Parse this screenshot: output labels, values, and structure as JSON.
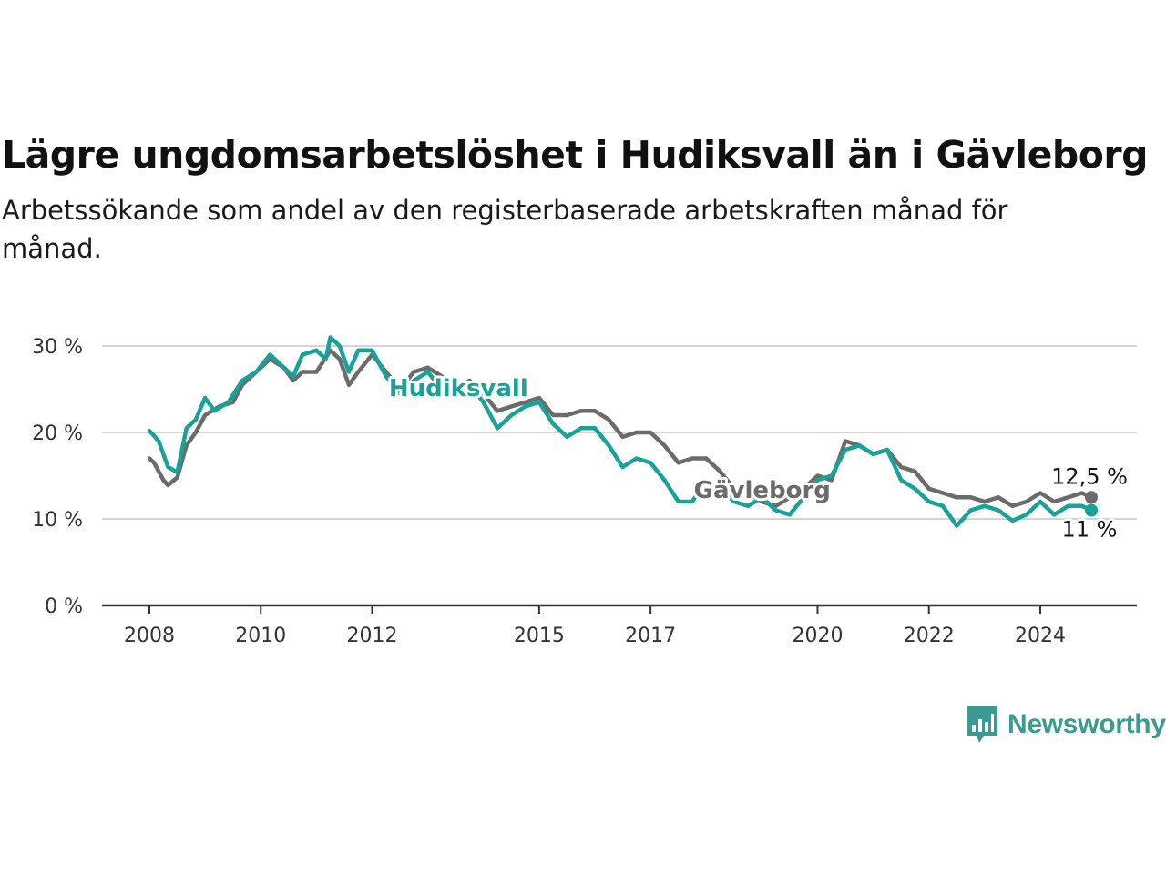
{
  "header": {
    "title": "Lägre ungdomsarbetslöshet i Hudiksvall än i Gävleborg",
    "subtitle": "Arbetssökande som andel av den registerbaserade arbetskraften månad för månad."
  },
  "branding": {
    "logo_text": "Newsworthy",
    "logo_icon": "bar-chart-speech-bubble-icon",
    "logo_color": "#3a9b92"
  },
  "chart_data": {
    "type": "line",
    "title": "Lägre ungdomsarbetslöshet i Hudiksvall än i Gävleborg",
    "xlabel": "",
    "ylabel": "",
    "xlim": [
      "2008-01",
      "2024-12"
    ],
    "ylim": [
      0,
      30
    ],
    "yticks": [
      0,
      10,
      20,
      30
    ],
    "ytick_labels": [
      "0 %",
      "10 %",
      "20 %",
      "30 %"
    ],
    "xticks": [
      "2008-01",
      "2010-01",
      "2012-01",
      "2015-01",
      "2017-01",
      "2020-01",
      "2022-01",
      "2024-01"
    ],
    "xtick_labels": [
      "2008",
      "2010",
      "2012",
      "2015",
      "2017",
      "2020",
      "2022",
      "2024"
    ],
    "grid": "horizontal",
    "series": [
      {
        "name": "Gävleborg",
        "color": "#6b6b6b",
        "end_label": "12,5 %",
        "points": [
          [
            "2008-01",
            17.0
          ],
          [
            "2008-02",
            16.5
          ],
          [
            "2008-04",
            14.5
          ],
          [
            "2008-05",
            13.9
          ],
          [
            "2008-07",
            14.8
          ],
          [
            "2008-09",
            18.5
          ],
          [
            "2008-11",
            20.0
          ],
          [
            "2009-01",
            22.0
          ],
          [
            "2009-04",
            23.0
          ],
          [
            "2009-07",
            23.5
          ],
          [
            "2009-09",
            25.5
          ],
          [
            "2009-12",
            27.0
          ],
          [
            "2010-03",
            28.5
          ],
          [
            "2010-06",
            27.5
          ],
          [
            "2010-08",
            26.0
          ],
          [
            "2010-10",
            27.0
          ],
          [
            "2011-01",
            27.0
          ],
          [
            "2011-04",
            29.5
          ],
          [
            "2011-06",
            28.5
          ],
          [
            "2011-08",
            25.5
          ],
          [
            "2011-10",
            27.0
          ],
          [
            "2012-01",
            29.0
          ],
          [
            "2012-04",
            27.0
          ],
          [
            "2012-07",
            25.0
          ],
          [
            "2012-10",
            27.0
          ],
          [
            "2013-01",
            27.5
          ],
          [
            "2013-04",
            26.5
          ],
          [
            "2013-07",
            25.0
          ],
          [
            "2013-10",
            26.0
          ],
          [
            "2014-01",
            24.5
          ],
          [
            "2014-04",
            22.5
          ],
          [
            "2014-07",
            23.0
          ],
          [
            "2014-10",
            23.5
          ],
          [
            "2015-01",
            24.0
          ],
          [
            "2015-04",
            22.0
          ],
          [
            "2015-07",
            22.0
          ],
          [
            "2015-10",
            22.5
          ],
          [
            "2016-01",
            22.5
          ],
          [
            "2016-04",
            21.5
          ],
          [
            "2016-07",
            19.5
          ],
          [
            "2016-10",
            20.0
          ],
          [
            "2017-01",
            20.0
          ],
          [
            "2017-04",
            18.5
          ],
          [
            "2017-07",
            16.5
          ],
          [
            "2017-10",
            17.0
          ],
          [
            "2018-01",
            17.0
          ],
          [
            "2018-04",
            15.5
          ],
          [
            "2018-07",
            13.5
          ],
          [
            "2018-10",
            13.0
          ],
          [
            "2019-01",
            12.0
          ],
          [
            "2019-04",
            11.5
          ],
          [
            "2019-07",
            12.5
          ],
          [
            "2019-10",
            13.5
          ],
          [
            "2020-01",
            15.0
          ],
          [
            "2020-04",
            14.5
          ],
          [
            "2020-07",
            19.0
          ],
          [
            "2020-10",
            18.5
          ],
          [
            "2021-01",
            17.5
          ],
          [
            "2021-04",
            18.0
          ],
          [
            "2021-07",
            16.0
          ],
          [
            "2021-10",
            15.5
          ],
          [
            "2022-01",
            13.5
          ],
          [
            "2022-04",
            13.0
          ],
          [
            "2022-07",
            12.5
          ],
          [
            "2022-10",
            12.5
          ],
          [
            "2023-01",
            12.0
          ],
          [
            "2023-04",
            12.5
          ],
          [
            "2023-07",
            11.5
          ],
          [
            "2023-10",
            12.0
          ],
          [
            "2024-01",
            13.0
          ],
          [
            "2024-04",
            12.0
          ],
          [
            "2024-07",
            12.5
          ],
          [
            "2024-10",
            13.0
          ],
          [
            "2024-12",
            12.5
          ]
        ]
      },
      {
        "name": "Hudiksvall",
        "color": "#17a398",
        "end_label": "11 %",
        "points": [
          [
            "2008-01",
            20.2
          ],
          [
            "2008-03",
            19.0
          ],
          [
            "2008-05",
            16.0
          ],
          [
            "2008-07",
            15.4
          ],
          [
            "2008-09",
            20.5
          ],
          [
            "2008-11",
            21.5
          ],
          [
            "2009-01",
            24.0
          ],
          [
            "2009-03",
            22.5
          ],
          [
            "2009-06",
            23.5
          ],
          [
            "2009-09",
            26.0
          ],
          [
            "2009-12",
            27.0
          ],
          [
            "2010-03",
            29.0
          ],
          [
            "2010-06",
            27.5
          ],
          [
            "2010-08",
            26.5
          ],
          [
            "2010-10",
            29.0
          ],
          [
            "2011-01",
            29.5
          ],
          [
            "2011-03",
            28.5
          ],
          [
            "2011-04",
            31.0
          ],
          [
            "2011-06",
            30.0
          ],
          [
            "2011-08",
            27.0
          ],
          [
            "2011-10",
            29.5
          ],
          [
            "2012-01",
            29.5
          ],
          [
            "2012-04",
            26.5
          ],
          [
            "2012-07",
            24.5
          ],
          [
            "2012-10",
            26.0
          ],
          [
            "2013-01",
            27.0
          ],
          [
            "2013-04",
            25.0
          ],
          [
            "2013-07",
            24.5
          ],
          [
            "2013-10",
            25.5
          ],
          [
            "2014-01",
            23.5
          ],
          [
            "2014-04",
            20.5
          ],
          [
            "2014-07",
            22.0
          ],
          [
            "2014-10",
            23.0
          ],
          [
            "2015-01",
            23.5
          ],
          [
            "2015-04",
            21.0
          ],
          [
            "2015-07",
            19.5
          ],
          [
            "2015-10",
            20.5
          ],
          [
            "2016-01",
            20.5
          ],
          [
            "2016-04",
            18.5
          ],
          [
            "2016-07",
            16.0
          ],
          [
            "2016-10",
            17.0
          ],
          [
            "2017-01",
            16.5
          ],
          [
            "2017-04",
            14.5
          ],
          [
            "2017-07",
            12.0
          ],
          [
            "2017-10",
            12.0
          ],
          [
            "2018-01",
            14.5
          ],
          [
            "2018-04",
            13.5
          ],
          [
            "2018-07",
            12.0
          ],
          [
            "2018-10",
            11.5
          ],
          [
            "2019-01",
            12.5
          ],
          [
            "2019-04",
            11.0
          ],
          [
            "2019-07",
            10.5
          ],
          [
            "2019-10",
            12.5
          ],
          [
            "2020-01",
            14.5
          ],
          [
            "2020-04",
            15.0
          ],
          [
            "2020-07",
            18.0
          ],
          [
            "2020-10",
            18.5
          ],
          [
            "2021-01",
            17.5
          ],
          [
            "2021-04",
            18.0
          ],
          [
            "2021-07",
            14.5
          ],
          [
            "2021-10",
            13.5
          ],
          [
            "2022-01",
            12.0
          ],
          [
            "2022-04",
            11.5
          ],
          [
            "2022-07",
            9.2
          ],
          [
            "2022-10",
            11.0
          ],
          [
            "2023-01",
            11.5
          ],
          [
            "2023-04",
            11.0
          ],
          [
            "2023-07",
            9.8
          ],
          [
            "2023-10",
            10.5
          ],
          [
            "2024-01",
            12.0
          ],
          [
            "2024-04",
            10.5
          ],
          [
            "2024-07",
            11.5
          ],
          [
            "2024-10",
            11.5
          ],
          [
            "2024-12",
            11.0
          ]
        ]
      }
    ]
  }
}
